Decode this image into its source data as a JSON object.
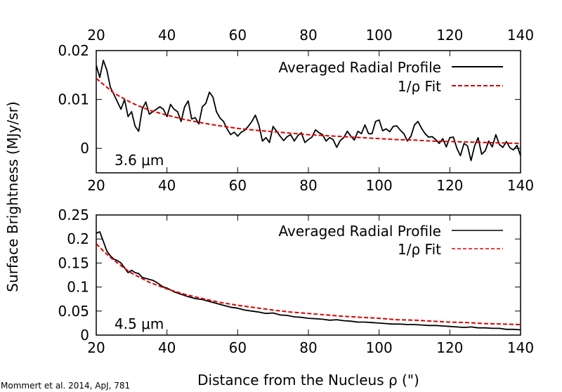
{
  "figure": {
    "ylabel": "Surface Brightness (MJy/sr)",
    "xlabel": "Distance from the Nucleus ρ (\")",
    "credit": "Mommert et al. 2014, ApJ, 781",
    "colors": {
      "profile": "#000000",
      "fit": "#dd0000",
      "frame": "#000000"
    }
  },
  "chart_data": [
    {
      "type": "line",
      "panel_label": "3.6 μm",
      "xlim": [
        20,
        140
      ],
      "ylim": [
        -0.005,
        0.02
      ],
      "xticks": [
        20,
        40,
        60,
        80,
        100,
        120,
        140
      ],
      "xtick_labels": [
        "20",
        "40",
        "60",
        "80",
        "100",
        "120",
        "140"
      ],
      "xticks_top_labeled": true,
      "yticks": [
        0,
        0.01,
        0.02
      ],
      "ytick_labels": [
        "0",
        "0.01",
        "0.02"
      ],
      "grid": false,
      "legend_position": "top-right",
      "series": [
        {
          "name": "Averaged Radial Profile",
          "style": "solid",
          "color": "#000000",
          "x": [
            20,
            21,
            22,
            23,
            24,
            25,
            26,
            27,
            28,
            29,
            30,
            31,
            32,
            33,
            34,
            35,
            36,
            37,
            38,
            39,
            40,
            41,
            42,
            43,
            44,
            45,
            46,
            47,
            48,
            49,
            50,
            51,
            52,
            53,
            54,
            55,
            56,
            57,
            58,
            59,
            60,
            61,
            62,
            63,
            64,
            65,
            66,
            67,
            68,
            69,
            70,
            71,
            72,
            73,
            74,
            75,
            76,
            77,
            78,
            79,
            80,
            81,
            82,
            83,
            84,
            85,
            86,
            87,
            88,
            89,
            90,
            91,
            92,
            93,
            94,
            95,
            96,
            97,
            98,
            99,
            100,
            101,
            102,
            103,
            104,
            105,
            106,
            107,
            108,
            109,
            110,
            111,
            112,
            113,
            114,
            115,
            116,
            117,
            118,
            119,
            120,
            121,
            122,
            123,
            124,
            125,
            126,
            127,
            128,
            129,
            130,
            131,
            132,
            133,
            134,
            135,
            136,
            137,
            138,
            139,
            140
          ],
          "y": [
            0.017,
            0.0145,
            0.018,
            0.016,
            0.0125,
            0.011,
            0.0095,
            0.008,
            0.01,
            0.0065,
            0.0075,
            0.0045,
            0.0035,
            0.008,
            0.0095,
            0.007,
            0.0075,
            0.008,
            0.0085,
            0.008,
            0.0065,
            0.009,
            0.008,
            0.0075,
            0.0055,
            0.0085,
            0.0097,
            0.006,
            0.0063,
            0.005,
            0.0085,
            0.0092,
            0.0115,
            0.0105,
            0.0075,
            0.0062,
            0.0055,
            0.004,
            0.0028,
            0.0033,
            0.0025,
            0.0033,
            0.0037,
            0.0045,
            0.0055,
            0.0068,
            0.0048,
            0.0015,
            0.0022,
            0.0012,
            0.0045,
            0.0035,
            0.0025,
            0.0016,
            0.0024,
            0.0028,
            0.0015,
            0.0026,
            0.0032,
            0.0012,
            0.0018,
            0.0023,
            0.0038,
            0.0032,
            0.0028,
            0.0015,
            0.0022,
            0.0018,
            0.0002,
            0.0016,
            0.0022,
            0.0035,
            0.0025,
            0.0017,
            0.0035,
            0.003,
            0.0048,
            0.003,
            0.003,
            0.0055,
            0.0058,
            0.0036,
            0.004,
            0.0034,
            0.0045,
            0.0046,
            0.0037,
            0.003,
            0.0015,
            0.0025,
            0.0048,
            0.0055,
            0.0041,
            0.003,
            0.0023,
            0.0024,
            0.0018,
            0.001,
            0.002,
            0.0003,
            0.0022,
            0.0023,
            0.0,
            -0.0015,
            0.001,
            0.0005,
            -0.0025,
            0.0005,
            0.0022,
            -0.0012,
            -0.0005,
            0.0015,
            0.0003,
            0.0028,
            0.0008,
            0.0002,
            0.0014,
            0.0001,
            -0.0003,
            0.0006,
            -0.0015
          ]
        },
        {
          "name": "1/ρ Fit",
          "style": "dashed",
          "color": "#dd0000",
          "x": [
            20,
            25,
            30,
            35,
            40,
            45,
            50,
            55,
            60,
            65,
            70,
            75,
            80,
            85,
            90,
            95,
            100,
            105,
            110,
            115,
            120,
            125,
            130,
            135,
            140
          ],
          "y": [
            0.0143,
            0.0113,
            0.0093,
            0.0078,
            0.0068,
            0.0059,
            0.0052,
            0.0046,
            0.0041,
            0.0037,
            0.0034,
            0.0031,
            0.0028,
            0.0026,
            0.0024,
            0.0022,
            0.002,
            0.0018,
            0.0017,
            0.0015,
            0.0014,
            0.0013,
            0.0012,
            0.0011,
            0.001
          ]
        }
      ]
    },
    {
      "type": "line",
      "panel_label": "4.5 μm",
      "xlim": [
        20,
        140
      ],
      "ylim": [
        0,
        0.25
      ],
      "xticks": [
        20,
        40,
        60,
        80,
        100,
        120,
        140
      ],
      "xtick_labels": [
        "20",
        "40",
        "60",
        "80",
        "100",
        "120",
        "140"
      ],
      "xticks_top_labeled": false,
      "yticks": [
        0,
        0.05,
        0.1,
        0.15,
        0.2,
        0.25
      ],
      "ytick_labels": [
        "0",
        "0.05",
        "0.1",
        "0.15",
        "0.2",
        "0.25"
      ],
      "grid": false,
      "legend_position": "top-right",
      "series": [
        {
          "name": "Averaged Radial Profile",
          "style": "solid",
          "color": "#000000",
          "x": [
            20,
            21,
            22,
            23,
            24,
            25,
            26,
            27,
            28,
            29,
            30,
            31,
            32,
            33,
            34,
            35,
            36,
            37,
            38,
            39,
            40,
            42,
            44,
            46,
            48,
            50,
            52,
            54,
            56,
            58,
            60,
            62,
            64,
            66,
            68,
            70,
            72,
            74,
            76,
            78,
            80,
            82,
            84,
            86,
            88,
            90,
            92,
            94,
            96,
            98,
            100,
            102,
            104,
            106,
            108,
            110,
            112,
            114,
            116,
            118,
            120,
            122,
            124,
            126,
            128,
            130,
            132,
            134,
            136,
            138,
            140
          ],
          "y": [
            0.212,
            0.215,
            0.195,
            0.175,
            0.165,
            0.158,
            0.155,
            0.15,
            0.14,
            0.13,
            0.135,
            0.13,
            0.128,
            0.12,
            0.118,
            0.116,
            0.114,
            0.11,
            0.105,
            0.1,
            0.098,
            0.09,
            0.085,
            0.08,
            0.076,
            0.074,
            0.07,
            0.066,
            0.062,
            0.058,
            0.056,
            0.052,
            0.05,
            0.048,
            0.045,
            0.046,
            0.042,
            0.041,
            0.038,
            0.037,
            0.035,
            0.034,
            0.033,
            0.031,
            0.032,
            0.03,
            0.029,
            0.027,
            0.027,
            0.026,
            0.025,
            0.024,
            0.023,
            0.023,
            0.022,
            0.022,
            0.021,
            0.02,
            0.02,
            0.019,
            0.018,
            0.017,
            0.016,
            0.017,
            0.015,
            0.015,
            0.014,
            0.014,
            0.012,
            0.012,
            0.011
          ]
        },
        {
          "name": "1/ρ Fit",
          "style": "dashed",
          "color": "#dd0000",
          "x": [
            20,
            22,
            24,
            26,
            28,
            30,
            35,
            40,
            45,
            50,
            55,
            60,
            65,
            70,
            75,
            80,
            85,
            90,
            95,
            100,
            105,
            110,
            115,
            120,
            125,
            130,
            135,
            140
          ],
          "y": [
            0.19,
            0.175,
            0.162,
            0.15,
            0.139,
            0.129,
            0.11,
            0.096,
            0.085,
            0.076,
            0.068,
            0.062,
            0.057,
            0.052,
            0.048,
            0.045,
            0.042,
            0.039,
            0.037,
            0.035,
            0.032,
            0.031,
            0.029,
            0.027,
            0.026,
            0.024,
            0.023,
            0.022
          ]
        }
      ]
    }
  ]
}
